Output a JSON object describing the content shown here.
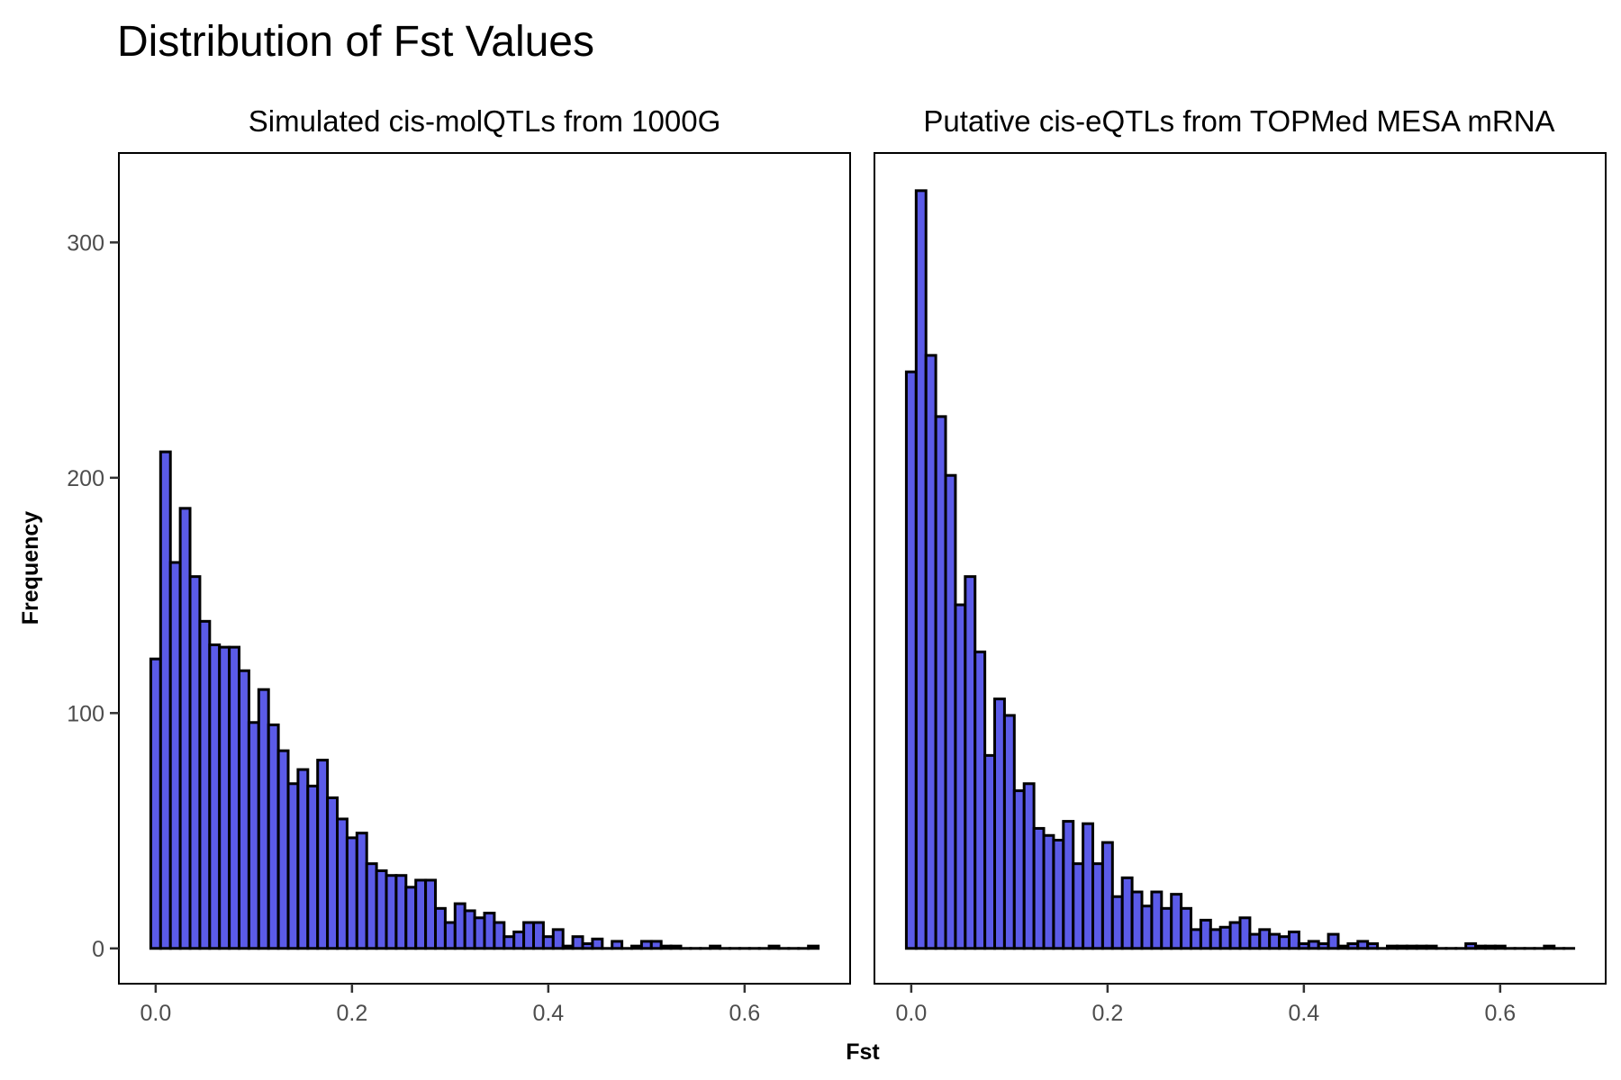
{
  "title": "Distribution of Fst Values",
  "xlabel": "Fst",
  "ylabel": "Frequency",
  "colors": {
    "bar_fill": "#5b5be8",
    "bar_outline": "#000000"
  },
  "chart_data": [
    {
      "type": "bar",
      "title": "Simulated cis-molQTLs from 1000G",
      "bin_width": 0.01,
      "x": [
        0.0,
        0.01,
        0.02,
        0.03,
        0.04,
        0.05,
        0.06,
        0.07,
        0.08,
        0.09,
        0.1,
        0.11,
        0.12,
        0.13,
        0.14,
        0.15,
        0.16,
        0.17,
        0.18,
        0.19,
        0.2,
        0.21,
        0.22,
        0.23,
        0.24,
        0.25,
        0.26,
        0.27,
        0.28,
        0.29,
        0.3,
        0.31,
        0.32,
        0.33,
        0.34,
        0.35,
        0.36,
        0.37,
        0.38,
        0.39,
        0.4,
        0.41,
        0.42,
        0.43,
        0.44,
        0.45,
        0.46,
        0.47,
        0.48,
        0.49,
        0.5,
        0.51,
        0.52,
        0.53,
        0.54,
        0.55,
        0.56,
        0.57,
        0.58,
        0.59,
        0.6,
        0.61,
        0.62,
        0.63,
        0.64,
        0.65,
        0.66,
        0.67
      ],
      "values": [
        123,
        211,
        164,
        187,
        158,
        139,
        129,
        128,
        128,
        118,
        96,
        110,
        95,
        84,
        70,
        76,
        69,
        80,
        64,
        55,
        47,
        49,
        36,
        33,
        31,
        31,
        26,
        29,
        29,
        17,
        11,
        19,
        16,
        13,
        15,
        11,
        5,
        7,
        11,
        11,
        5,
        8,
        1,
        5,
        2,
        4,
        0,
        3,
        0,
        1,
        3,
        3,
        1,
        1,
        0,
        0,
        0,
        1,
        0,
        0,
        0,
        0,
        0,
        1,
        0,
        0,
        0,
        1
      ],
      "xlim": [
        -0.0375,
        0.7075
      ],
      "ylim": [
        -15,
        338
      ],
      "xticks": [
        "0.0",
        "0.2",
        "0.4",
        "0.6"
      ],
      "xtick_values": [
        0.0,
        0.2,
        0.4,
        0.6
      ],
      "yticks": [
        "0",
        "100",
        "200",
        "300"
      ],
      "ytick_values": [
        0,
        100,
        200,
        300
      ]
    },
    {
      "type": "bar",
      "title": "Putative cis-eQTLs from TOPMed MESA mRNA",
      "bin_width": 0.01,
      "x": [
        0.0,
        0.01,
        0.02,
        0.03,
        0.04,
        0.05,
        0.06,
        0.07,
        0.08,
        0.09,
        0.1,
        0.11,
        0.12,
        0.13,
        0.14,
        0.15,
        0.16,
        0.17,
        0.18,
        0.19,
        0.2,
        0.21,
        0.22,
        0.23,
        0.24,
        0.25,
        0.26,
        0.27,
        0.28,
        0.29,
        0.3,
        0.31,
        0.32,
        0.33,
        0.34,
        0.35,
        0.36,
        0.37,
        0.38,
        0.39,
        0.4,
        0.41,
        0.42,
        0.43,
        0.44,
        0.45,
        0.46,
        0.47,
        0.48,
        0.49,
        0.5,
        0.51,
        0.52,
        0.53,
        0.54,
        0.55,
        0.56,
        0.57,
        0.58,
        0.59,
        0.6,
        0.61,
        0.62,
        0.63,
        0.64,
        0.65,
        0.66,
        0.67
      ],
      "values": [
        245,
        322,
        252,
        226,
        201,
        146,
        158,
        126,
        82,
        106,
        99,
        67,
        70,
        51,
        48,
        46,
        54,
        36,
        53,
        36,
        45,
        22,
        30,
        24,
        18,
        24,
        17,
        23,
        17,
        8,
        12,
        8,
        9,
        11,
        13,
        6,
        8,
        6,
        5,
        7,
        2,
        3,
        2,
        6,
        1,
        2,
        3,
        2,
        0,
        1,
        1,
        1,
        1,
        1,
        0,
        0,
        0,
        2,
        1,
        1,
        1,
        0,
        0,
        0,
        0,
        1,
        0,
        0
      ],
      "xlim": [
        -0.0375,
        0.7075
      ],
      "ylim": [
        -15,
        338
      ],
      "xticks": [
        "0.0",
        "0.2",
        "0.4",
        "0.6"
      ],
      "xtick_values": [
        0.0,
        0.2,
        0.4,
        0.6
      ],
      "yticks": [],
      "ytick_values": []
    }
  ]
}
